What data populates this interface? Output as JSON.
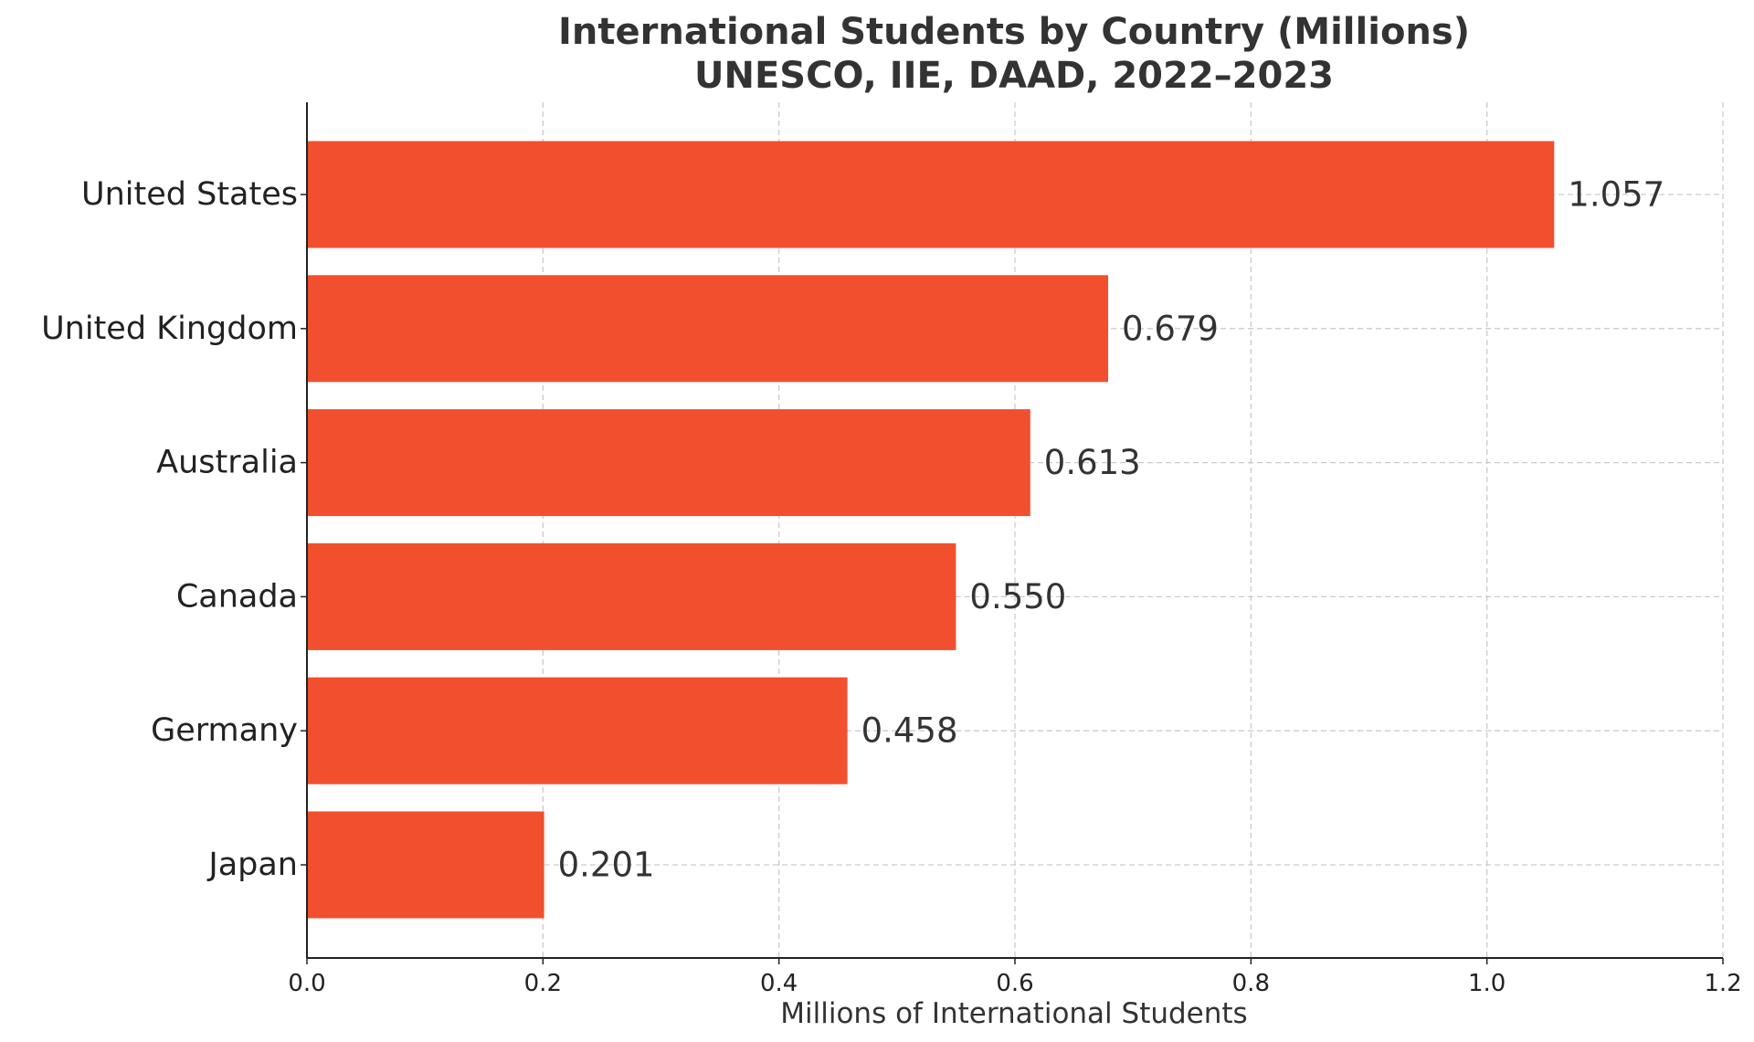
{
  "chart_data": {
    "type": "bar",
    "orientation": "horizontal",
    "title": "International Students by Country (Millions)",
    "subtitle": "UNESCO, IIE, DAAD, 2022–2023",
    "xlabel": "Millions of International Students",
    "ylabel": "",
    "categories": [
      "United States",
      "United Kingdom",
      "Australia",
      "Canada",
      "Germany",
      "Japan"
    ],
    "values": [
      1.057,
      0.679,
      0.613,
      0.55,
      0.458,
      0.201
    ],
    "value_labels": [
      "1.057",
      "0.679",
      "0.613",
      "0.550",
      "0.458",
      "0.201"
    ],
    "xlim": [
      0,
      1.2
    ],
    "xticks": [
      0.0,
      0.2,
      0.4,
      0.6,
      0.8,
      1.0,
      1.2
    ],
    "xtick_labels": [
      "0.0",
      "0.2",
      "0.4",
      "0.6",
      "0.8",
      "1.0",
      "1.2"
    ],
    "grid": true,
    "bar_color": "#f24f2f"
  }
}
